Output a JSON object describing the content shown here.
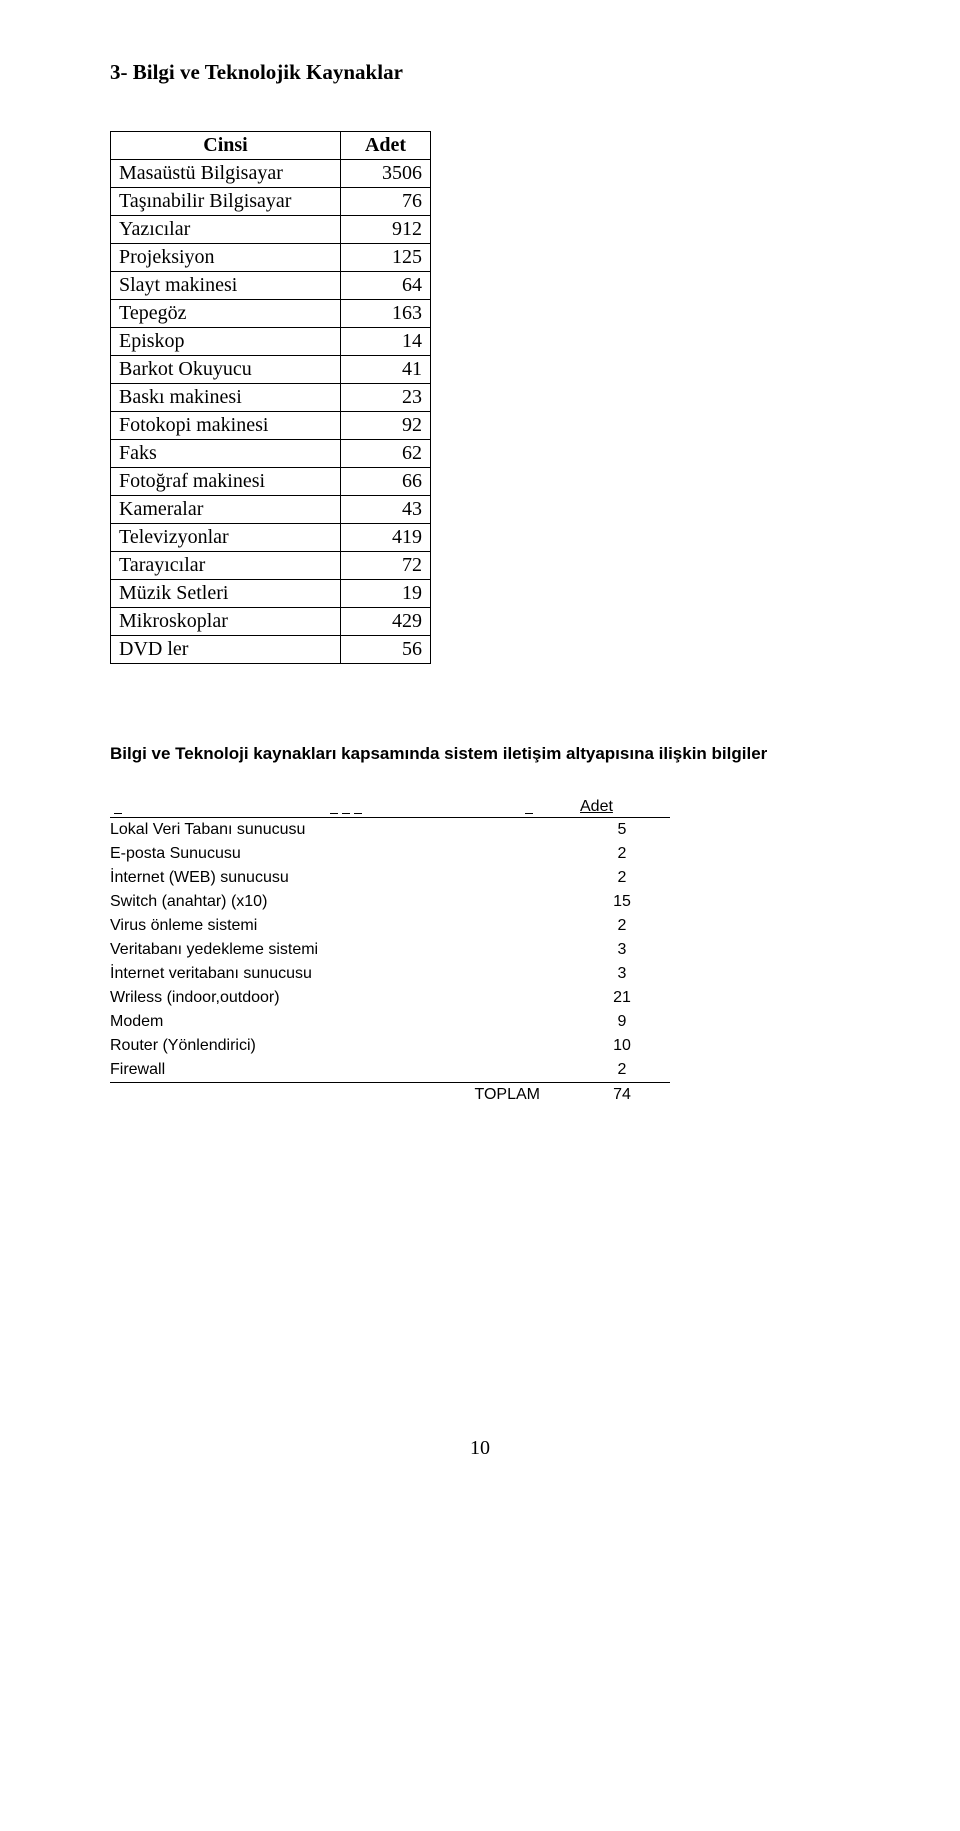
{
  "section_title": "3- Bilgi ve Teknolojik Kaynaklar",
  "equip_table": {
    "columns": [
      "Cinsi",
      "Adet"
    ],
    "rows": [
      [
        "Masaüstü Bilgisayar",
        "3506"
      ],
      [
        "Taşınabilir Bilgisayar",
        "76"
      ],
      [
        "Yazıcılar",
        "912"
      ],
      [
        "Projeksiyon",
        "125"
      ],
      [
        "Slayt makinesi",
        "64"
      ],
      [
        "Tepegöz",
        "163"
      ],
      [
        "Episkop",
        "14"
      ],
      [
        "Barkot Okuyucu",
        "41"
      ],
      [
        "Baskı makinesi",
        "23"
      ],
      [
        "Fotokopi makinesi",
        "92"
      ],
      [
        "Faks",
        "62"
      ],
      [
        "Fotoğraf makinesi",
        "66"
      ],
      [
        "Kameralar",
        "43"
      ],
      [
        "Televizyonlar",
        "419"
      ],
      [
        "Tarayıcılar",
        "72"
      ],
      [
        "Müzik Setleri",
        "19"
      ],
      [
        "Mikroskoplar",
        "429"
      ],
      [
        "DVD ler",
        "56"
      ]
    ]
  },
  "sub_heading": "Bilgi ve Teknoloji kaynakları kapsamında sistem iletişim altyapısına ilişkin bilgiler",
  "infra_table": {
    "header_right": "Adet",
    "rows": [
      [
        "Lokal Veri Tabanı sunucusu",
        "5"
      ],
      [
        "E-posta Sunucusu",
        "2"
      ],
      [
        "İnternet (WEB) sunucusu",
        "2"
      ],
      [
        "Switch (anahtar) (x10)",
        "15"
      ],
      [
        "Virus önleme sistemi",
        "2"
      ],
      [
        "Veritabanı yedekleme sistemi",
        "3"
      ],
      [
        "İnternet veritabanı sunucusu",
        "3"
      ],
      [
        "Wriless (indoor,outdoor)",
        "21"
      ],
      [
        "Modem",
        "9"
      ],
      [
        "Router (Yönlendirici)",
        "10"
      ],
      [
        "Firewall",
        "2"
      ]
    ],
    "total_label": "TOPLAM",
    "total_value": "74"
  },
  "page_number": "10"
}
